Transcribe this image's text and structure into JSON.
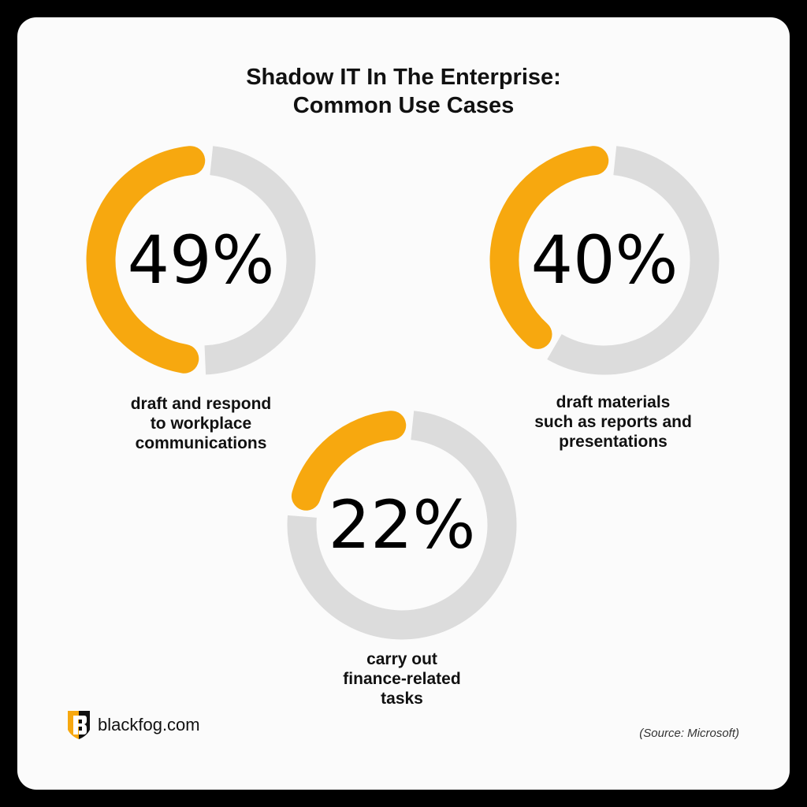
{
  "title": "Shadow IT In The Enterprise:\nCommon Use Cases",
  "colors": {
    "accent": "#F7A80F",
    "track": "#DCDCDC",
    "text": "#111111"
  },
  "chart_data": {
    "type": "donut",
    "title": "Shadow IT In The Enterprise: Common Use Cases",
    "items": [
      {
        "value": 49,
        "display": "49%",
        "label": "draft and respond\nto workplace\ncommunications"
      },
      {
        "value": 40,
        "display": "40%",
        "label": "draft materials\nsuch as reports and\npresentations"
      },
      {
        "value": 22,
        "display": "22%",
        "label": "carry out\nfinance-related\ntasks"
      }
    ]
  },
  "logo": {
    "text": "blackfog.com",
    "icon": "blackfog-shield-logo"
  },
  "source": "(Source: Microsoft)"
}
